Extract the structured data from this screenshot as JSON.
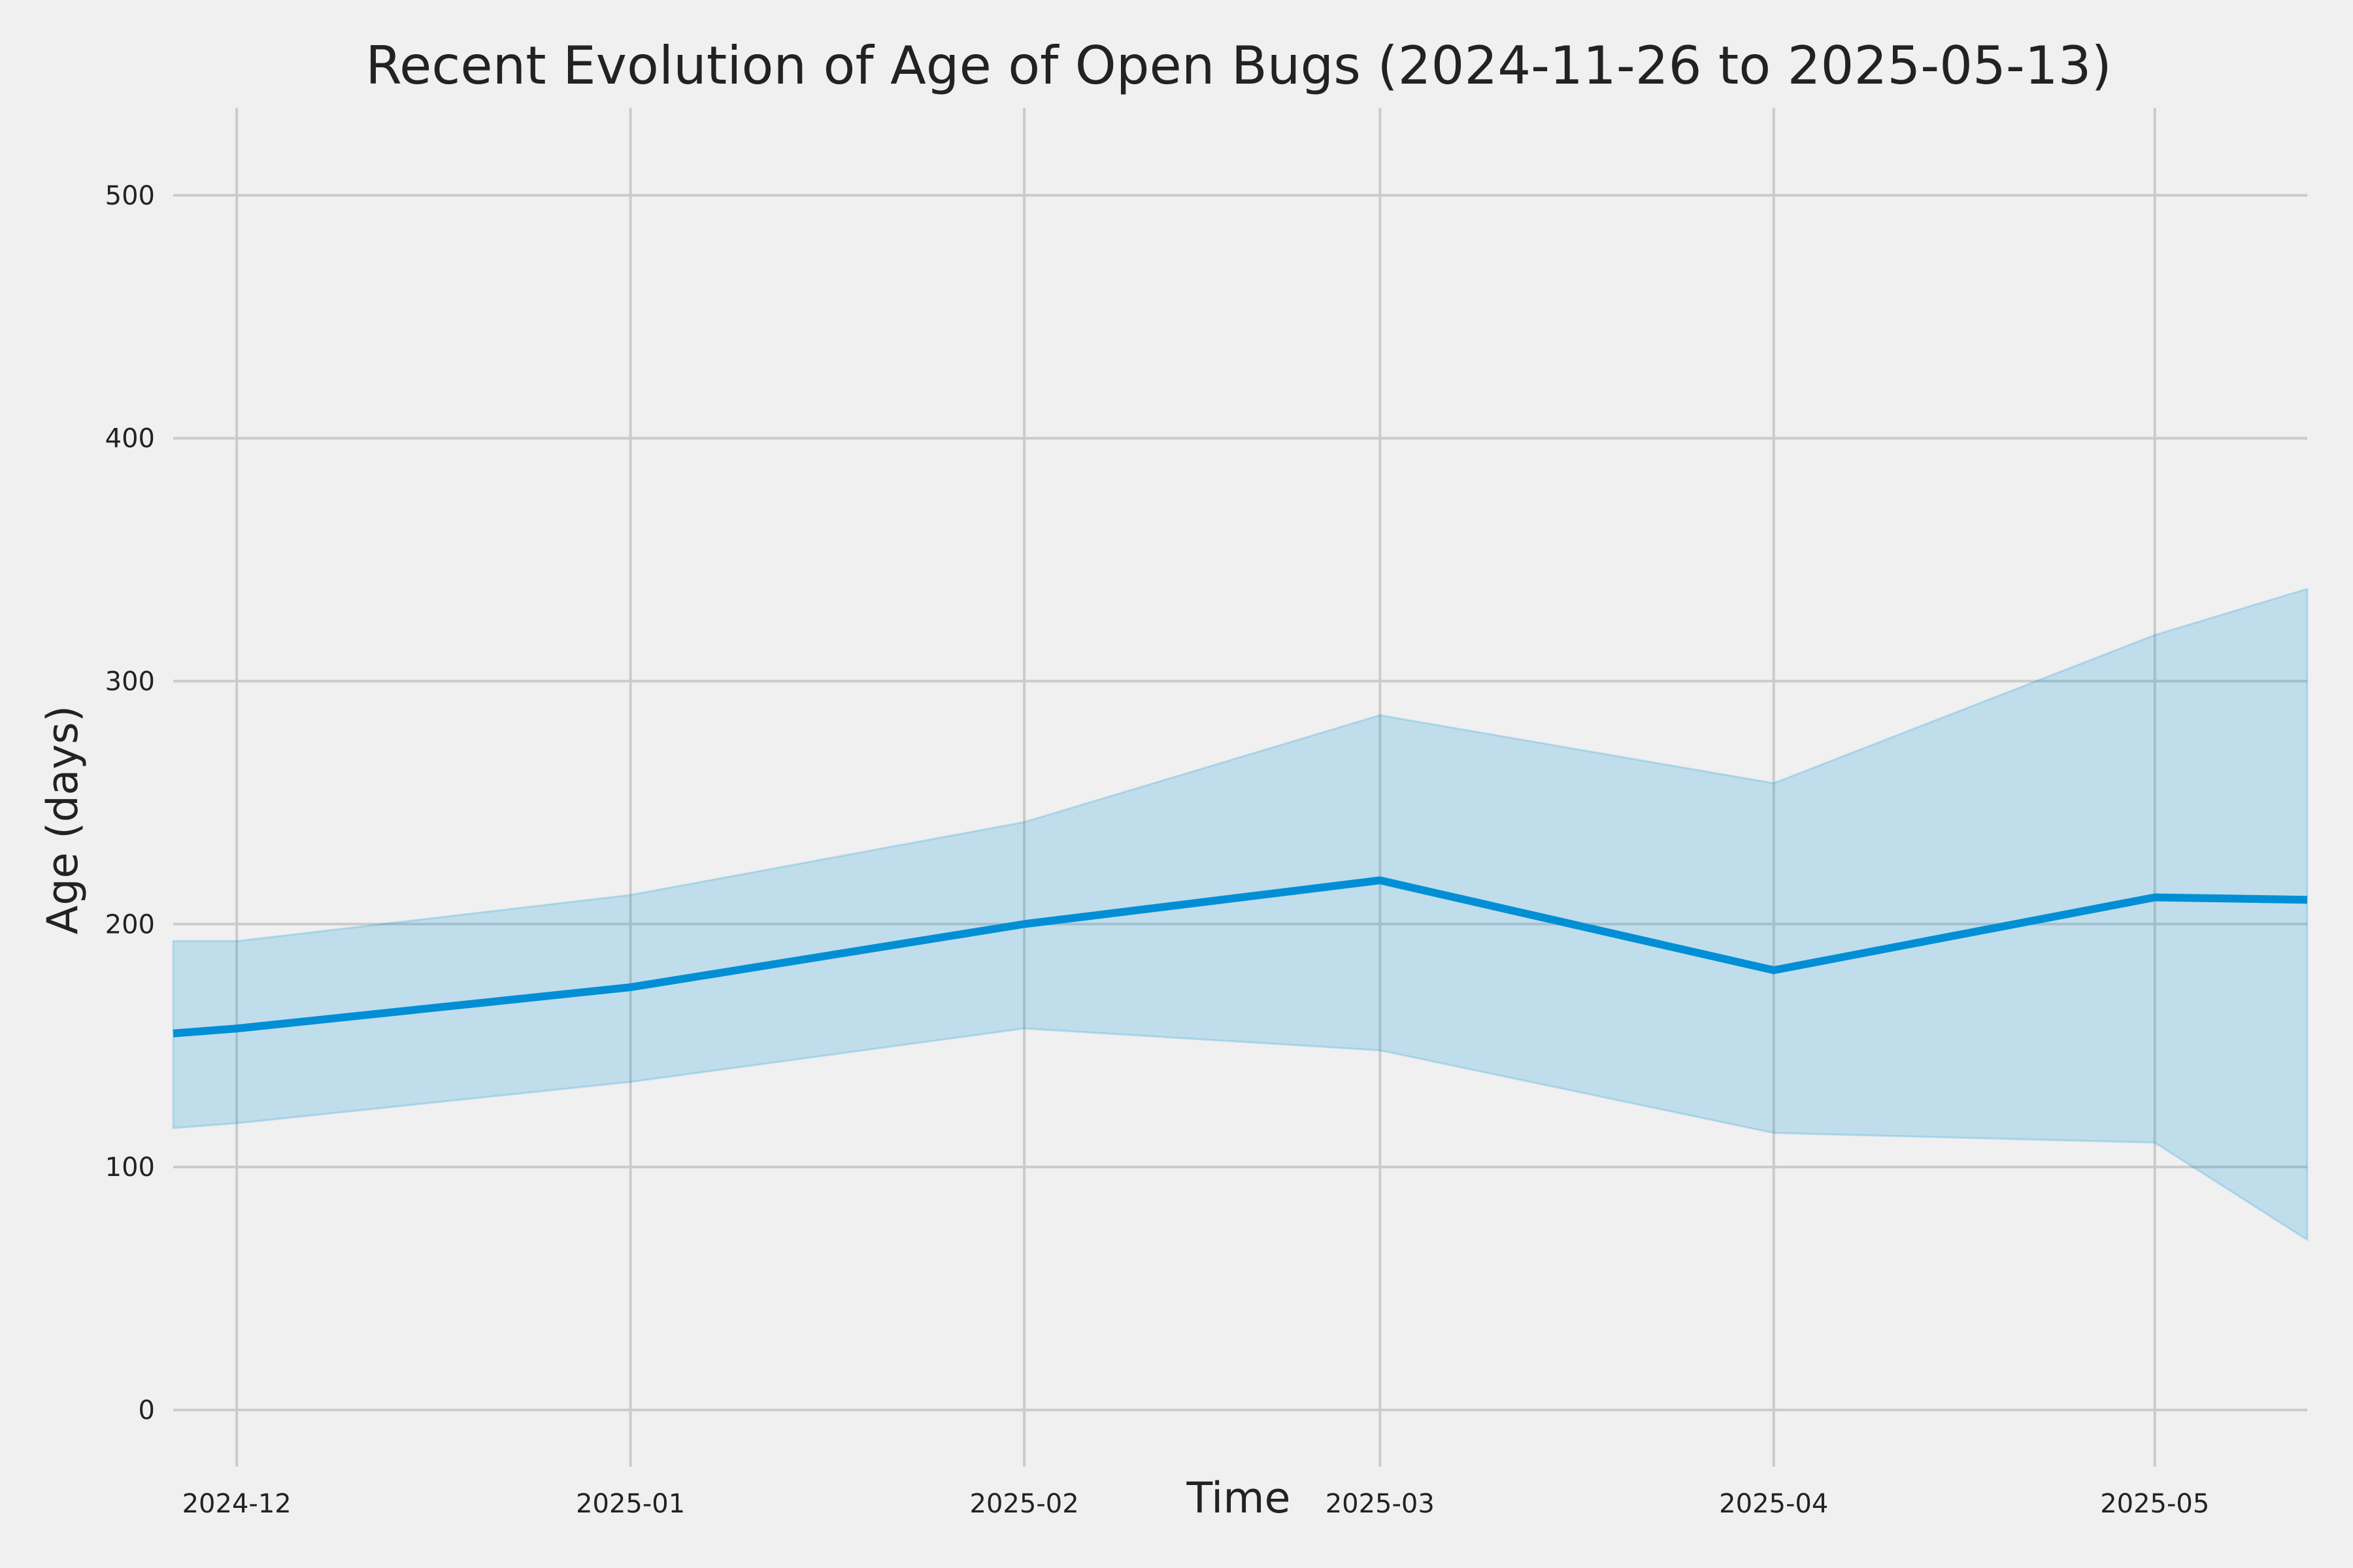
{
  "chart_data": {
    "type": "line",
    "title": "Recent Evolution of Age of Open Bugs (2024-11-26 to 2025-05-13)",
    "xlabel": "Time",
    "ylabel": "Age (days)",
    "xlim": [
      "2024-11-26",
      "2025-05-13"
    ],
    "ylim": [
      -18,
      536
    ],
    "x_tick_labels": [
      "2024-12",
      "2025-01",
      "2025-02",
      "2025-03",
      "2025-04",
      "2025-05"
    ],
    "x_tick_dates": [
      "2024-12-01",
      "2025-01-01",
      "2025-02-01",
      "2025-03-01",
      "2025-04-01",
      "2025-05-01"
    ],
    "y_ticks": [
      0,
      100,
      200,
      300,
      400,
      500
    ],
    "grid": true,
    "legend": false,
    "series": [
      {
        "style": "line",
        "color": "#008fd5",
        "x": [
          "2024-11-26",
          "2024-12-01",
          "2025-01-01",
          "2025-02-01",
          "2025-03-01",
          "2025-04-01",
          "2025-05-01",
          "2025-05-13"
        ],
        "y": [
          155,
          157,
          174,
          200,
          218,
          181,
          211,
          210
        ]
      },
      {
        "style": "band",
        "color": "#008fd5",
        "opacity": 0.2,
        "x": [
          "2024-11-26",
          "2024-12-01",
          "2025-01-01",
          "2025-02-01",
          "2025-03-01",
          "2025-04-01",
          "2025-05-01",
          "2025-05-13"
        ],
        "lower": [
          116,
          118,
          135,
          157,
          148,
          114,
          110,
          70
        ],
        "upper": [
          193,
          193,
          212,
          242,
          286,
          258,
          319,
          338
        ]
      }
    ]
  }
}
